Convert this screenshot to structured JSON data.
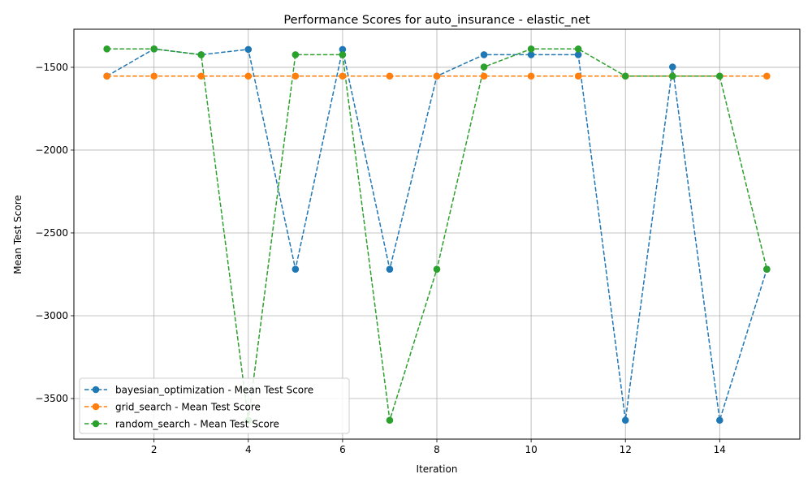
{
  "chart_data": {
    "type": "line",
    "title": "Performance Scores for auto_insurance - elastic_net",
    "xlabel": "Iteration",
    "ylabel": "Mean Test Score",
    "xlim": [
      0.3,
      15.7
    ],
    "ylim": [
      -3745,
      -1270
    ],
    "xticks": [
      2,
      4,
      6,
      8,
      10,
      12,
      14
    ],
    "yticks": [
      -3500,
      -3000,
      -2500,
      -2000,
      -1500
    ],
    "grid": true,
    "legend_position": "lower-left",
    "series": [
      {
        "name": "bayesian_optimization - Mean Test Score",
        "color": "#1f77b4",
        "x": [
          1,
          2,
          3,
          4,
          5,
          6,
          7,
          8,
          9,
          10,
          11,
          12,
          13,
          14,
          15
        ],
        "y": [
          -1553,
          -1389,
          -1424,
          -1392,
          -2719,
          -1392,
          -2719,
          -1553,
          -1424,
          -1424,
          -1424,
          -3631,
          -1498,
          -3631,
          -2719
        ]
      },
      {
        "name": "grid_search - Mean Test Score",
        "color": "#ff7f0e",
        "x": [
          1,
          2,
          3,
          4,
          5,
          6,
          7,
          8,
          9,
          10,
          11,
          12,
          13,
          14,
          15
        ],
        "y": [
          -1553,
          -1553,
          -1553,
          -1553,
          -1553,
          -1553,
          -1553,
          -1553,
          -1553,
          -1553,
          -1553,
          -1553,
          -1553,
          -1553,
          -1553
        ]
      },
      {
        "name": "random_search - Mean Test Score",
        "color": "#2ca02c",
        "x": [
          1,
          2,
          3,
          4,
          5,
          6,
          7,
          8,
          9,
          10,
          11,
          12,
          13,
          14,
          15
        ],
        "y": [
          -1389,
          -1389,
          -1424,
          -3631,
          -1424,
          -1424,
          -3631,
          -2719,
          -1498,
          -1389,
          -1389,
          -1553,
          -1553,
          -1553,
          -2719
        ]
      }
    ]
  }
}
